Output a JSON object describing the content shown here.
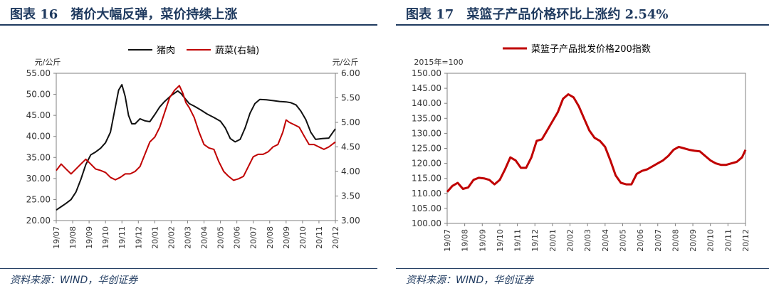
{
  "chart_data": [
    {
      "type": "line",
      "title": "图表 16 猪价大幅反弹，菜价持续上涨",
      "unit_left": "元/公斤",
      "unit_right": "元/公斤",
      "legend": [
        "猪肉",
        "蔬菜(右轴)"
      ],
      "legend_placement": "top-center",
      "ylim": [
        20,
        55
      ],
      "ylim_right": [
        3,
        6
      ],
      "y_ticks": [
        "20.00",
        "25.00",
        "30.00",
        "35.00",
        "40.00",
        "45.00",
        "50.00",
        "55.00"
      ],
      "y_ticks_right": [
        "3.00",
        "3.50",
        "4.00",
        "4.50",
        "5.00",
        "5.50",
        "6.00"
      ],
      "categories": [
        "19/07",
        "19/08",
        "19/09",
        "19/10",
        "19/11",
        "19/12",
        "20/01",
        "20/02",
        "20/03",
        "20/04",
        "20/05",
        "20/06",
        "20/07",
        "20/08",
        "20/09",
        "20/10",
        "20/11",
        "20/12"
      ],
      "series": [
        {
          "name": "猪肉",
          "axis": "left",
          "color": "#111111",
          "x": [
            0,
            0.3,
            0.6,
            0.9,
            1.2,
            1.5,
            1.8,
            2.1,
            2.4,
            2.7,
            3.0,
            3.3,
            3.6,
            3.8,
            4.0,
            4.2,
            4.4,
            4.6,
            4.8,
            5.1,
            5.4,
            5.7,
            6.0,
            6.3,
            6.6,
            7.0,
            7.4,
            7.6,
            7.8,
            8.1,
            8.4,
            8.8,
            9.2,
            9.6,
            10.0,
            10.3,
            10.6,
            10.9,
            11.2,
            11.5,
            11.8,
            12.1,
            12.4,
            12.8,
            13.2,
            13.6,
            14.0,
            14.3,
            14.6,
            14.9,
            15.2,
            15.5,
            15.8,
            16.2,
            16.6,
            17.0
          ],
          "values": [
            22.5,
            23.3,
            24.1,
            25.0,
            26.8,
            29.8,
            33.3,
            35.6,
            36.3,
            37.2,
            38.5,
            41.0,
            47.0,
            51.0,
            52.3,
            49.5,
            45.0,
            43.0,
            43.0,
            44.2,
            43.7,
            43.5,
            45.2,
            47.0,
            48.3,
            49.7,
            50.8,
            50.2,
            49.2,
            47.8,
            47.2,
            46.3,
            45.3,
            44.5,
            43.6,
            42.0,
            39.5,
            38.7,
            39.3,
            42.0,
            45.5,
            47.8,
            48.8,
            48.7,
            48.5,
            48.3,
            48.2,
            48.0,
            47.5,
            46.0,
            44.0,
            41.0,
            39.3,
            39.5,
            39.6,
            41.8
          ]
        },
        {
          "name": "蔬菜(右轴)",
          "axis": "right",
          "color": "#c00000",
          "x": [
            0,
            0.3,
            0.6,
            0.9,
            1.2,
            1.5,
            1.8,
            2.1,
            2.4,
            2.7,
            3.0,
            3.3,
            3.6,
            3.9,
            4.2,
            4.5,
            4.8,
            5.1,
            5.4,
            5.7,
            6.0,
            6.3,
            6.6,
            6.9,
            7.2,
            7.5,
            7.7,
            7.9,
            8.1,
            8.4,
            8.7,
            9.0,
            9.3,
            9.6,
            9.9,
            10.2,
            10.5,
            10.8,
            11.1,
            11.4,
            11.7,
            12.0,
            12.3,
            12.6,
            12.9,
            13.2,
            13.5,
            13.8,
            14.0,
            14.2,
            14.5,
            14.8,
            15.1,
            15.4,
            15.7,
            16.0,
            16.3,
            16.6,
            17.0
          ],
          "values": [
            4.02,
            4.15,
            4.05,
            3.95,
            4.05,
            4.15,
            4.25,
            4.15,
            4.05,
            4.02,
            3.98,
            3.88,
            3.83,
            3.88,
            3.95,
            3.95,
            4.0,
            4.1,
            4.35,
            4.6,
            4.7,
            4.9,
            5.2,
            5.5,
            5.65,
            5.75,
            5.6,
            5.4,
            5.3,
            5.1,
            4.8,
            4.55,
            4.48,
            4.45,
            4.2,
            4.0,
            3.9,
            3.82,
            3.85,
            3.9,
            4.1,
            4.3,
            4.35,
            4.35,
            4.4,
            4.5,
            4.55,
            4.8,
            5.05,
            5.0,
            4.95,
            4.9,
            4.72,
            4.55,
            4.55,
            4.5,
            4.45,
            4.5,
            4.6
          ]
        }
      ]
    },
    {
      "type": "line",
      "title": "图表 17 菜篮子产品价格环比上涨约 2.54%",
      "unit_left": "2015年=100",
      "legend": [
        "菜篮子产品批发价格200指数"
      ],
      "legend_placement": "top-center",
      "ylim": [
        100,
        150
      ],
      "y_ticks": [
        "100.00",
        "105.00",
        "110.00",
        "115.00",
        "120.00",
        "125.00",
        "130.00",
        "135.00",
        "140.00",
        "145.00",
        "150.00"
      ],
      "categories": [
        "19/07",
        "19/08",
        "19/09",
        "19/10",
        "19/11",
        "19/12",
        "20/01",
        "20/02",
        "20/03",
        "20/04",
        "20/05",
        "20/06",
        "20/07",
        "20/08",
        "20/09",
        "20/10",
        "20/11",
        "20/12"
      ],
      "series": [
        {
          "name": "菜篮子产品批发价格200指数",
          "color": "#c00000",
          "x": [
            0,
            0.3,
            0.6,
            0.9,
            1.2,
            1.5,
            1.8,
            2.1,
            2.4,
            2.7,
            3.0,
            3.3,
            3.6,
            3.9,
            4.2,
            4.5,
            4.8,
            5.1,
            5.4,
            5.7,
            6.0,
            6.3,
            6.6,
            6.9,
            7.2,
            7.5,
            7.8,
            8.1,
            8.4,
            8.7,
            9.0,
            9.3,
            9.6,
            9.9,
            10.2,
            10.5,
            10.8,
            11.1,
            11.4,
            11.7,
            12.0,
            12.3,
            12.6,
            12.9,
            13.2,
            13.5,
            13.8,
            14.1,
            14.4,
            14.7,
            15.0,
            15.3,
            15.6,
            15.9,
            16.2,
            16.5,
            16.8,
            17.0
          ],
          "values": [
            110.5,
            112.5,
            113.5,
            111.5,
            112.0,
            114.5,
            115.2,
            115.0,
            114.5,
            113.0,
            114.5,
            118.0,
            122.0,
            121.0,
            118.5,
            118.5,
            122.0,
            127.5,
            128.0,
            131.0,
            134.0,
            137.0,
            141.5,
            143.0,
            142.0,
            139.0,
            135.0,
            131.0,
            128.5,
            127.5,
            125.5,
            121.0,
            116.0,
            113.5,
            113.0,
            113.0,
            116.5,
            117.5,
            118.0,
            119.0,
            120.0,
            121.0,
            122.5,
            124.5,
            125.5,
            125.0,
            124.5,
            124.2,
            124.0,
            122.5,
            121.0,
            120.0,
            119.5,
            119.5,
            120.0,
            120.5,
            122.0,
            124.5
          ]
        }
      ]
    }
  ],
  "captions": {
    "left_title": "图表 16　猪价大幅反弹，菜价持续上涨",
    "right_title": "图表 17　菜篮子产品价格环比上涨约 2.54%",
    "left_source": "资料来源：WIND，华创证券",
    "right_source": "资料来源：WIND，华创证券"
  }
}
